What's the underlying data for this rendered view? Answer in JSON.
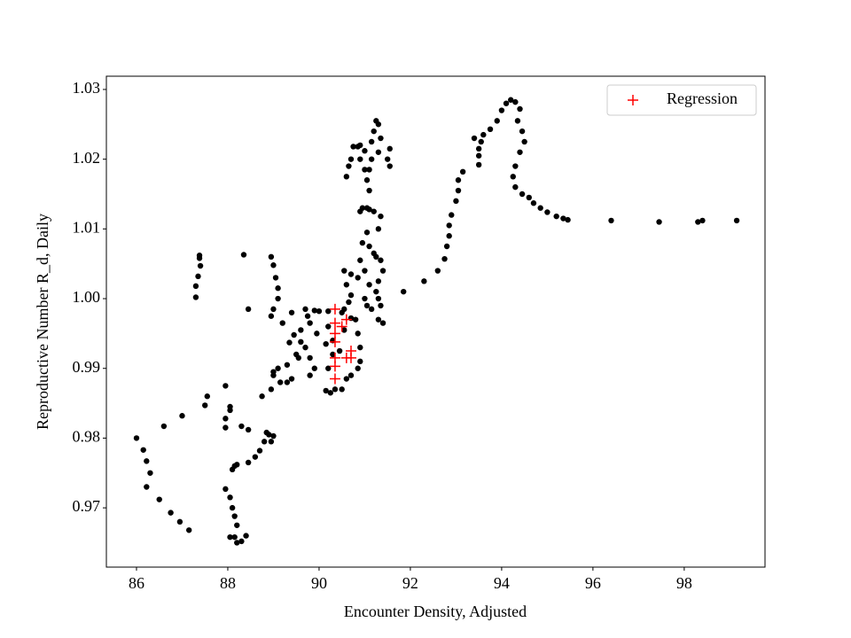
{
  "chart_data": {
    "type": "scatter",
    "xlabel": "Encounter Density, Adjusted",
    "ylabel": "Reproductive Number R_d, Daily",
    "xlim": [
      85.34,
      99.77
    ],
    "ylim": [
      0.9615,
      1.0319
    ],
    "xticks": [
      86,
      88,
      90,
      92,
      94,
      96,
      98
    ],
    "yticks": [
      0.97,
      0.98,
      0.99,
      {
        "value": 1,
        "label": "1.00"
      },
      1.01,
      1.02,
      1.03
    ],
    "legend": "upper right",
    "series": [
      {
        "color": "#000000",
        "marker": "circle",
        "x": [
          86.0,
          86.15,
          86.22,
          86.3,
          86.22,
          86.5,
          86.75,
          86.95,
          87.15,
          86.6,
          87.0,
          87.5,
          87.55,
          87.95,
          87.3,
          87.3,
          87.35,
          87.4,
          87.38,
          87.38,
          88.35,
          88.45,
          87.95,
          87.95,
          88.05,
          88.05,
          88.3,
          88.45,
          87.95,
          88.05,
          88.1,
          88.15,
          88.2,
          88.15,
          88.05,
          88.2,
          88.3,
          88.4,
          88.1,
          88.15,
          88.2,
          88.45,
          88.6,
          88.7,
          88.8,
          88.9,
          89.0,
          88.85,
          88.95,
          88.95,
          89.0,
          89.05,
          89.1,
          89.1,
          89.0,
          88.95,
          88.75,
          88.95,
          89.0,
          89.1,
          89.3,
          89.5,
          89.35,
          89.45,
          89.6,
          89.2,
          89.4,
          89.7,
          89.9,
          90.0,
          89.75,
          89.8,
          89.6,
          89.7,
          89.55,
          89.3,
          89.15,
          89.4,
          89.8,
          89.9,
          89.8,
          89.95,
          89.0,
          90.15,
          90.25,
          90.35,
          90.5,
          90.6,
          90.7,
          90.85,
          90.9,
          90.9,
          90.85,
          90.8,
          90.7,
          90.5,
          90.2,
          90.3,
          90.3,
          90.2,
          90.15,
          90.2,
          90.45,
          90.55,
          91.0,
          91.1,
          91.0,
          90.9,
          90.85,
          90.95,
          91.05,
          91.1,
          91.25,
          91.35,
          91.4,
          91.3,
          91.25,
          91.35,
          91.3,
          91.4,
          91.15,
          91.05,
          91.3,
          91.2,
          91.3,
          91.35,
          91.2,
          91.05,
          90.95,
          90.9,
          91.1,
          91.1,
          91.05,
          91.0,
          90.9,
          90.85,
          90.75,
          90.9,
          91.0,
          91.15,
          91.2,
          91.25,
          91.3,
          91.35,
          91.3,
          91.15,
          91.1,
          90.65,
          90.7,
          90.6,
          91.5,
          91.55,
          91.55,
          90.55,
          90.6,
          90.7,
          90.7,
          90.55,
          90.65,
          91.85,
          92.3,
          92.6,
          92.75,
          92.8,
          92.85,
          92.85,
          92.9,
          93.0,
          93.05,
          93.05,
          93.15,
          93.5,
          93.5,
          93.5,
          93.55,
          93.4,
          93.6,
          93.75,
          93.9,
          94.0,
          94.1,
          94.2,
          94.3,
          94.4,
          94.35,
          94.45,
          94.5,
          94.4,
          94.3,
          94.25,
          94.3,
          94.45,
          94.6,
          94.7,
          94.85,
          95.0,
          95.2,
          95.35,
          95.45,
          96.4,
          97.45,
          98.3,
          98.4,
          99.15
        ],
        "y": [
          0.98,
          0.9783,
          0.9767,
          0.975,
          0.973,
          0.9712,
          0.9693,
          0.968,
          0.9668,
          0.9817,
          0.9832,
          0.9847,
          0.986,
          0.9875,
          1.0002,
          1.0018,
          1.0032,
          1.0047,
          1.0058,
          1.0062,
          1.0063,
          0.9985,
          0.9828,
          0.9815,
          0.9845,
          0.984,
          0.9817,
          0.9812,
          0.9727,
          0.9715,
          0.97,
          0.9688,
          0.9675,
          0.9658,
          0.9658,
          0.965,
          0.9652,
          0.966,
          0.9755,
          0.976,
          0.9762,
          0.9765,
          0.9773,
          0.9782,
          0.9795,
          0.9805,
          0.9803,
          0.9808,
          0.9795,
          1.006,
          1.0048,
          1.003,
          1.0015,
          1.0,
          0.9985,
          0.9975,
          0.986,
          0.987,
          0.9895,
          0.99,
          0.9905,
          0.992,
          0.9937,
          0.9948,
          0.9955,
          0.9965,
          0.998,
          0.9985,
          0.9983,
          0.9982,
          0.9975,
          0.9965,
          0.9938,
          0.993,
          0.9915,
          0.988,
          0.988,
          0.9885,
          0.989,
          0.99,
          0.9915,
          0.995,
          0.989,
          0.9868,
          0.9865,
          0.987,
          0.987,
          0.9885,
          0.989,
          0.99,
          0.991,
          0.993,
          0.995,
          0.997,
          0.9972,
          0.998,
          0.9982,
          0.992,
          0.994,
          0.996,
          0.9935,
          0.99,
          0.9925,
          0.9955,
          1.0,
          1.002,
          1.004,
          1.0055,
          1.003,
          1.008,
          1.0095,
          1.0075,
          1.006,
          1.0055,
          1.004,
          1.0025,
          1.001,
          0.999,
          0.997,
          0.9965,
          0.9985,
          0.999,
          1.0,
          1.0065,
          1.01,
          1.0118,
          1.0125,
          1.013,
          1.013,
          1.0125,
          1.0128,
          1.0155,
          1.017,
          1.0185,
          1.02,
          1.0218,
          1.0218,
          1.022,
          1.0212,
          1.0225,
          1.024,
          1.0255,
          1.025,
          1.023,
          1.021,
          1.02,
          1.0185,
          1.019,
          1.02,
          1.0175,
          1.02,
          1.0215,
          1.019,
          1.004,
          1.002,
          1.0035,
          1.0005,
          0.9985,
          0.9995,
          1.001,
          1.0025,
          1.004,
          1.0057,
          1.0075,
          1.009,
          1.0105,
          1.012,
          1.014,
          1.0155,
          1.017,
          1.0182,
          1.0192,
          1.0205,
          1.0215,
          1.0225,
          1.023,
          1.0235,
          1.0243,
          1.0255,
          1.027,
          1.028,
          1.0285,
          1.0282,
          1.0272,
          1.0255,
          1.024,
          1.0225,
          1.021,
          1.019,
          1.0175,
          1.016,
          1.015,
          1.0145,
          1.0137,
          1.013,
          1.0124,
          1.0118,
          1.0115,
          1.0113,
          1.0112,
          1.011,
          1.011,
          1.0112,
          1.0112
        ]
      },
      {
        "name": "Regression",
        "color": "#ff0000",
        "marker": "plus",
        "x": [
          90.35,
          90.35,
          90.35,
          90.35,
          90.6,
          90.5,
          90.35,
          90.35,
          90.35,
          90.7,
          90.7,
          90.6
        ],
        "y": [
          0.9985,
          0.9965,
          0.995,
          0.9938,
          0.997,
          0.996,
          0.9915,
          0.9903,
          0.9885,
          0.9925,
          0.9915,
          0.9915
        ]
      }
    ]
  }
}
